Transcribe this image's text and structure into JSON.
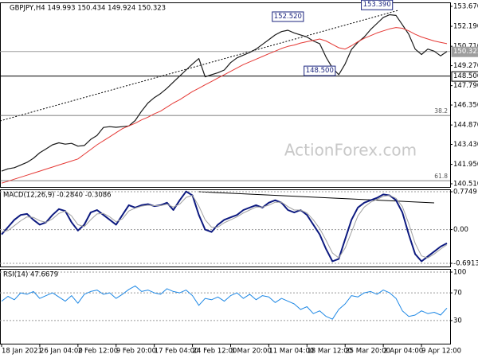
{
  "chart_data": [
    {
      "type": "line",
      "title": "GBPJPY,H4 149.993 150.434 149.924 150.323",
      "watermark": "ActionForex.com",
      "categories": [
        "18 Jan 2021",
        null,
        null,
        null,
        null,
        null,
        "26 Jan 04:00",
        null,
        null,
        null,
        null,
        null,
        "2 Feb 12:00",
        null,
        null,
        null,
        null,
        null,
        "9 Feb 20:00",
        null,
        null,
        null,
        null,
        null,
        "17 Feb 04:00",
        null,
        null,
        null,
        null,
        null,
        "24 Feb 12:00",
        null,
        null,
        null,
        null,
        null,
        "3 Mar 20:00",
        null,
        null,
        null,
        null,
        null,
        "11 Mar 04:00",
        null,
        null,
        null,
        null,
        null,
        "18 Mar 12:00",
        null,
        null,
        null,
        null,
        null,
        "25 Mar 20:00",
        null,
        null,
        null,
        null,
        null,
        "2 Apr 04:00",
        null,
        null,
        null,
        null,
        null,
        "9 Apr 12:00",
        null,
        null,
        null,
        null
      ],
      "series": [
        {
          "name": "GBPJPY",
          "color": "#1a1a1a",
          "values": [
            141.45,
            141.62,
            141.7,
            141.9,
            142.1,
            142.4,
            142.81,
            143.1,
            143.4,
            143.55,
            143.45,
            143.51,
            143.3,
            143.35,
            143.8,
            144.1,
            144.69,
            144.75,
            144.7,
            144.75,
            144.8,
            145.2,
            145.9,
            146.5,
            146.9,
            147.2,
            147.6,
            148.05,
            148.5,
            148.95,
            149.4,
            149.8,
            148.45,
            148.6,
            148.75,
            148.95,
            149.5,
            149.85,
            150.05,
            150.25,
            150.5,
            150.85,
            151.2,
            151.55,
            151.8,
            151.9,
            151.7,
            151.55,
            151.4,
            151.1,
            150.9,
            149.9,
            149.1,
            148.6,
            149.4,
            150.48,
            151.0,
            151.4,
            151.95,
            152.4,
            152.85,
            153.05,
            153.0,
            152.3,
            151.6,
            150.5,
            150.1,
            150.5,
            150.35,
            150.0,
            150.32
          ]
        },
        {
          "name": "MA",
          "color": "#e53935",
          "values": [
            140.56,
            140.7,
            140.85,
            141.0,
            141.15,
            141.3,
            141.45,
            141.6,
            141.75,
            141.9,
            142.05,
            142.2,
            142.35,
            142.7,
            143.05,
            143.4,
            143.7,
            144.0,
            144.3,
            144.6,
            144.8,
            145.0,
            145.25,
            145.45,
            145.7,
            145.9,
            146.2,
            146.5,
            146.75,
            147.05,
            147.35,
            147.6,
            147.85,
            148.1,
            148.35,
            148.6,
            148.85,
            149.1,
            149.35,
            149.55,
            149.75,
            149.95,
            150.15,
            150.35,
            150.55,
            150.7,
            150.8,
            150.95,
            151.05,
            151.15,
            151.25,
            151.1,
            150.85,
            150.6,
            150.5,
            150.75,
            151.05,
            151.3,
            151.5,
            151.7,
            151.85,
            152.0,
            152.1,
            152.05,
            151.85,
            151.6,
            151.4,
            151.25,
            151.1,
            151.0,
            150.9
          ]
        }
      ],
      "ylim": [
        140.274,
        153.965
      ],
      "yticks": [
        {
          "value": 153.67,
          "label": "153.670"
        },
        {
          "value": 152.19,
          "label": "152.190"
        },
        {
          "value": 150.71,
          "label": "150.710"
        },
        {
          "value": 149.27,
          "label": "149.270"
        },
        {
          "value": 147.79,
          "label": "147.790"
        },
        {
          "value": 146.35,
          "label": "146.350"
        },
        {
          "value": 144.87,
          "label": "144.870"
        },
        {
          "value": 143.43,
          "label": "143.430"
        },
        {
          "value": 141.95,
          "label": "141.950"
        },
        {
          "value": 140.51,
          "label": "140.510"
        }
      ],
      "levels": [
        {
          "value": 150.323,
          "label": "150.323",
          "color": "#9e9e9e"
        },
        {
          "value": 148.5,
          "label": "148.500",
          "color": "#000000"
        }
      ],
      "fib_levels": [
        {
          "value": 145.58,
          "label": "38.2"
        },
        {
          "value": 140.74,
          "label": "61.8"
        }
      ],
      "annotations": [
        {
          "value": 152.52,
          "label": "152.520",
          "index": 45
        },
        {
          "value": 153.39,
          "label": "153.390",
          "index": 59
        },
        {
          "value": 148.5,
          "label": "148.500",
          "index": 50
        }
      ],
      "grid": false
    },
    {
      "type": "line",
      "title": "MACD(12,26,9) -0.2840 -0.3086",
      "series": [
        {
          "name": "MACD",
          "color": "#0d1a80",
          "values": [
            -0.1,
            0.05,
            0.2,
            0.3,
            0.32,
            0.2,
            0.1,
            0.15,
            0.3,
            0.42,
            0.38,
            0.15,
            -0.02,
            0.1,
            0.35,
            0.4,
            0.3,
            0.2,
            0.1,
            0.3,
            0.5,
            0.45,
            0.5,
            0.52,
            0.48,
            0.5,
            0.55,
            0.4,
            0.6,
            0.78,
            0.7,
            0.3,
            0,
            -0.05,
            0.1,
            0.2,
            0.25,
            0.3,
            0.4,
            0.45,
            0.5,
            0.45,
            0.55,
            0.6,
            0.55,
            0.4,
            0.35,
            0.4,
            0.3,
            0.1,
            -0.1,
            -0.4,
            -0.65,
            -0.6,
            -0.2,
            0.2,
            0.45,
            0.55,
            0.6,
            0.65,
            0.72,
            0.7,
            0.6,
            0.35,
            -0.1,
            -0.5,
            -0.65,
            -0.55,
            -0.45,
            -0.35,
            -0.28
          ]
        },
        {
          "name": "Signal",
          "color": "#a0a0a0",
          "values": [
            -0.05,
            -0.02,
            0.08,
            0.18,
            0.26,
            0.25,
            0.18,
            0.15,
            0.22,
            0.33,
            0.38,
            0.28,
            0.1,
            0.06,
            0.2,
            0.32,
            0.33,
            0.26,
            0.16,
            0.22,
            0.38,
            0.44,
            0.48,
            0.5,
            0.49,
            0.49,
            0.52,
            0.46,
            0.52,
            0.66,
            0.7,
            0.48,
            0.2,
            0.05,
            0.05,
            0.14,
            0.2,
            0.26,
            0.34,
            0.4,
            0.46,
            0.46,
            0.5,
            0.56,
            0.56,
            0.47,
            0.4,
            0.4,
            0.34,
            0.2,
            0.02,
            -0.22,
            -0.48,
            -0.58,
            -0.38,
            -0.05,
            0.28,
            0.46,
            0.56,
            0.62,
            0.68,
            0.7,
            0.64,
            0.47,
            0.12,
            -0.28,
            -0.54,
            -0.58,
            -0.5,
            -0.4,
            -0.31
          ]
        }
      ],
      "ylim": [
        -0.7565,
        0.8238
      ],
      "yticks": [
        0.7749,
        {
          "value": 0,
          "label": "0.00"
        },
        -0.6913
      ],
      "grid": true
    },
    {
      "type": "line",
      "title": "RSI(14) 47.6679",
      "series": [
        {
          "name": "RSI",
          "color": "#1e88e5",
          "values": [
            58,
            65,
            60,
            70,
            68,
            72,
            62,
            66,
            70,
            64,
            58,
            66,
            55,
            68,
            72,
            74,
            68,
            70,
            62,
            68,
            75,
            80,
            72,
            74,
            70,
            68,
            76,
            72,
            70,
            74,
            66,
            52,
            62,
            60,
            64,
            58,
            66,
            70,
            62,
            68,
            60,
            66,
            64,
            56,
            62,
            58,
            54,
            46,
            50,
            40,
            44,
            36,
            32,
            46,
            54,
            66,
            64,
            70,
            72,
            68,
            74,
            70,
            62,
            44,
            36,
            38,
            44,
            40,
            42,
            38,
            48
          ]
        }
      ],
      "ylim": [
        -3.4,
        104.6
      ],
      "yticks": [
        100,
        70,
        30
      ],
      "grid": true
    }
  ]
}
